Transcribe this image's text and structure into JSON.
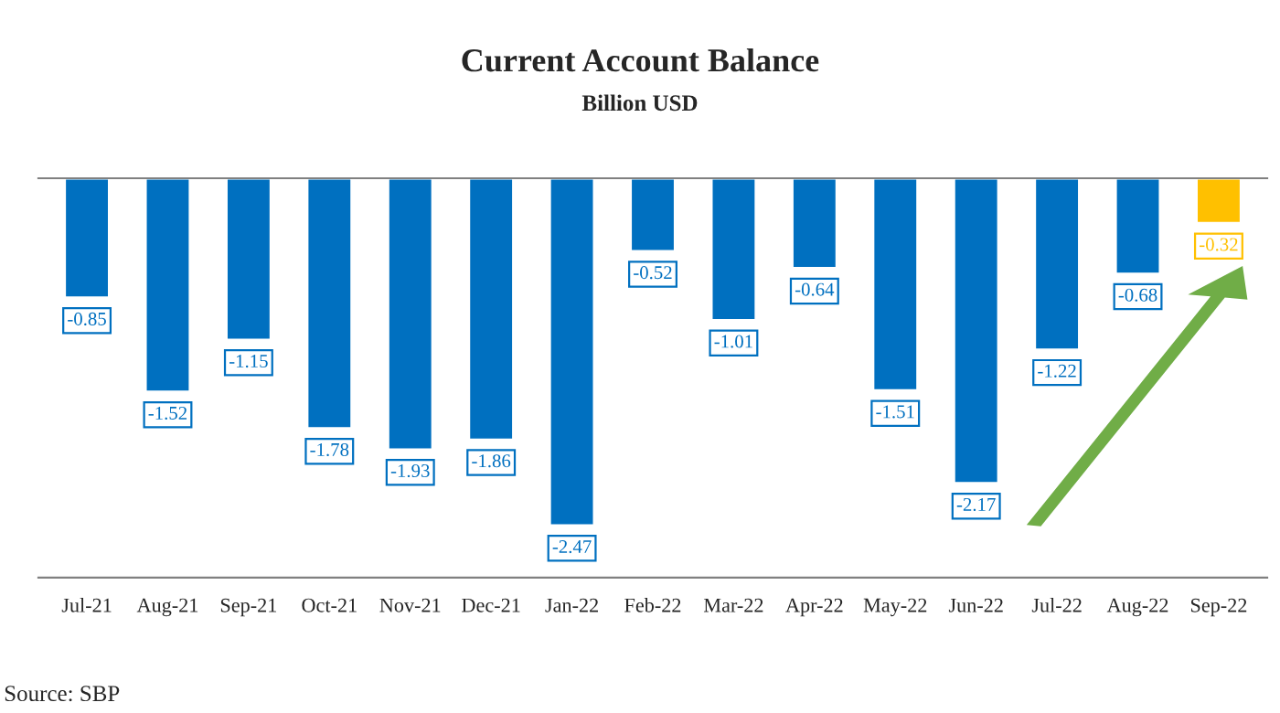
{
  "chart_data": {
    "type": "bar",
    "title": "Current Account Balance",
    "subtitle": "Billion USD",
    "categories": [
      "Jul-21",
      "Aug-21",
      "Sep-21",
      "Oct-21",
      "Nov-21",
      "Dec-21",
      "Jan-22",
      "Feb-22",
      "Mar-22",
      "Apr-22",
      "May-22",
      "Jun-22",
      "Jul-22",
      "Aug-22",
      "Sep-22"
    ],
    "values": [
      -0.85,
      -1.52,
      -1.15,
      -1.78,
      -1.93,
      -1.86,
      -2.47,
      -0.52,
      -1.01,
      -0.64,
      -1.51,
      -2.17,
      -1.22,
      -0.68,
      -0.32
    ],
    "colors": [
      "#0070c0",
      "#0070c0",
      "#0070c0",
      "#0070c0",
      "#0070c0",
      "#0070c0",
      "#0070c0",
      "#0070c0",
      "#0070c0",
      "#0070c0",
      "#0070c0",
      "#0070c0",
      "#0070c0",
      "#0070c0",
      "#ffc000"
    ],
    "data_labels": true,
    "grid": false,
    "legend": false,
    "tick_labels": "x",
    "annotations": [
      "Source: SBP"
    ]
  }
}
